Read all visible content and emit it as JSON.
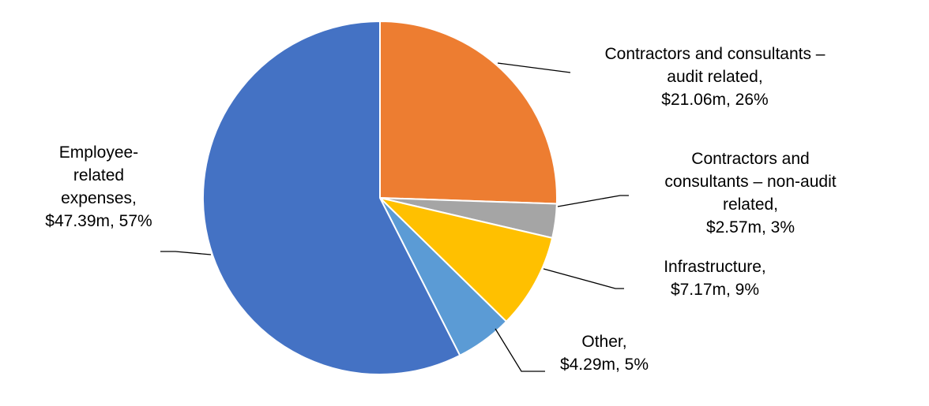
{
  "chart_data": {
    "type": "pie",
    "title": "",
    "start_angle_deg": 0,
    "direction": "clockwise",
    "legend": "none",
    "slices": [
      {
        "name": "Contractors and consultants – audit related",
        "value": 21.06,
        "percent": 26,
        "color": "#ED7D31",
        "label_lines": [
          "Contractors and consultants –",
          "audit related,",
          "$21.06m, 26%"
        ]
      },
      {
        "name": "Contractors and consultants – non-audit related",
        "value": 2.57,
        "percent": 3,
        "color": "#A5A5A5",
        "label_lines": [
          "Contractors and",
          "consultants – non-audit",
          "related,",
          "$2.57m, 3%"
        ]
      },
      {
        "name": "Infrastructure",
        "value": 7.17,
        "percent": 9,
        "color": "#FFC000",
        "label_lines": [
          "Infrastructure,",
          "$7.17m, 9%"
        ]
      },
      {
        "name": "Other",
        "value": 4.29,
        "percent": 5,
        "color": "#5B9BD5",
        "label_lines": [
          "Other,",
          "$4.29m, 5%"
        ]
      },
      {
        "name": "Employee-related expenses",
        "value": 47.39,
        "percent": 57,
        "color": "#4472C4",
        "label_lines": [
          "Employee-",
          "related",
          "expenses,",
          "$47.39m, 57%"
        ]
      }
    ]
  }
}
